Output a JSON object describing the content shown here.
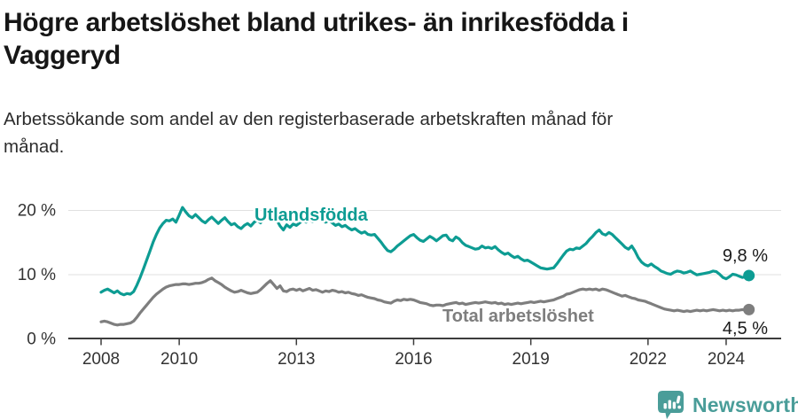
{
  "title": {
    "lines": [
      "Högre arbetslöshet bland utrikes- än inrikesfödda i",
      "Vaggeryd"
    ]
  },
  "subtitle": {
    "lines": [
      "Arbetssökande som andel av den registerbaserade arbetskraften månad för",
      "månad."
    ]
  },
  "footer": {
    "brand": "Newsworthy"
  },
  "colors": {
    "foreign_born_line": "#0d9c93",
    "total_line": "#7e7e7e",
    "axis": "#3c3c3c",
    "grid": "#e1e1e1",
    "value_label": "#1a1a1a",
    "brand_teal": "#4a9d99"
  },
  "chart_data": {
    "type": "line",
    "title": "Högre arbetslöshet bland utrikes- än inrikesfödda i Vaggeryd",
    "subtitle": "Arbetssökande som andel av den registerbaserade arbetskraften månad för månad.",
    "unit": "%",
    "x_start_year": 2008,
    "x_step_months": 1,
    "x_ticks": [
      {
        "year": 2008,
        "label": "2008"
      },
      {
        "year": 2010,
        "label": "2010"
      },
      {
        "year": 2013,
        "label": "2013"
      },
      {
        "year": 2016,
        "label": "2016"
      },
      {
        "year": 2019,
        "label": "2019"
      },
      {
        "year": 2022,
        "label": "2022"
      },
      {
        "year": 2024,
        "label": "2024"
      }
    ],
    "y_ticks": [
      {
        "value": 0,
        "label": "0 %"
      },
      {
        "value": 10,
        "label": "10 %"
      },
      {
        "value": 20,
        "label": "20 %"
      }
    ],
    "y_range": [
      0,
      22
    ],
    "grid": "horizontal-only",
    "legend_position": "inline-labels",
    "series": [
      {
        "id": "utlandsfodda",
        "name": "Utlandsfödda",
        "color": "#0d9c93",
        "end_label": "9,8 %",
        "end_value": 9.8,
        "values": [
          7.2,
          7.5,
          7.7,
          7.4,
          7.1,
          7.4,
          7.0,
          6.8,
          7.0,
          6.9,
          7.3,
          8.3,
          9.5,
          10.8,
          12.2,
          13.6,
          15.0,
          16.2,
          17.2,
          17.9,
          18.4,
          18.3,
          18.6,
          18.1,
          19.2,
          20.4,
          19.7,
          19.1,
          18.8,
          19.3,
          18.8,
          18.3,
          18.0,
          18.5,
          18.9,
          18.4,
          17.9,
          18.4,
          18.8,
          18.2,
          17.7,
          17.9,
          17.4,
          17.1,
          17.6,
          17.9,
          17.5,
          18.1,
          18.4,
          18.0,
          18.8,
          19.6,
          20.1,
          19.2,
          18.4,
          17.5,
          16.9,
          17.7,
          17.3,
          17.8,
          17.6,
          18.0,
          18.4,
          18.1,
          18.5,
          18.2,
          18.6,
          18.7,
          18.3,
          18.1,
          18.4,
          18.0,
          17.6,
          17.8,
          17.4,
          17.6,
          17.2,
          16.9,
          17.1,
          16.7,
          16.4,
          16.6,
          16.2,
          16.1,
          16.2,
          15.6,
          15.0,
          14.3,
          13.7,
          13.5,
          13.9,
          14.4,
          14.8,
          15.2,
          15.6,
          16.0,
          16.2,
          15.7,
          15.3,
          15.1,
          15.5,
          15.9,
          15.6,
          15.2,
          15.6,
          16.0,
          16.1,
          15.4,
          15.2,
          15.8,
          15.5,
          14.9,
          14.5,
          14.3,
          14.1,
          13.9,
          14.0,
          14.4,
          14.1,
          14.2,
          14.0,
          14.3,
          13.8,
          13.4,
          13.1,
          13.3,
          12.9,
          12.6,
          12.8,
          12.4,
          12.1,
          12.2,
          11.9,
          11.6,
          11.3,
          11.0,
          10.9,
          10.8,
          10.9,
          11.0,
          11.6,
          12.3,
          13.0,
          13.6,
          13.9,
          13.8,
          14.1,
          14.0,
          14.4,
          14.8,
          15.4,
          15.9,
          16.5,
          16.9,
          16.3,
          16.1,
          16.5,
          16.2,
          15.7,
          15.2,
          14.7,
          14.2,
          13.9,
          14.4,
          13.6,
          12.6,
          11.9,
          11.5,
          11.3,
          11.6,
          11.2,
          10.9,
          10.5,
          10.3,
          10.1,
          10.0,
          10.3,
          10.5,
          10.4,
          10.2,
          10.3,
          10.5,
          10.2,
          9.9,
          10.0,
          10.1,
          10.2,
          10.3,
          10.5,
          10.4,
          10.0,
          9.5,
          9.3,
          9.6,
          10.0,
          9.9,
          9.7,
          9.5,
          9.6,
          9.8
        ]
      },
      {
        "id": "total",
        "name": "Total arbetslöshet",
        "color": "#7e7e7e",
        "end_label": "4,5 %",
        "end_value": 4.5,
        "values": [
          2.6,
          2.7,
          2.6,
          2.4,
          2.2,
          2.1,
          2.2,
          2.2,
          2.3,
          2.4,
          2.7,
          3.3,
          4.0,
          4.6,
          5.2,
          5.8,
          6.4,
          6.9,
          7.3,
          7.7,
          8.0,
          8.2,
          8.3,
          8.4,
          8.4,
          8.5,
          8.5,
          8.4,
          8.5,
          8.6,
          8.6,
          8.7,
          8.9,
          9.2,
          9.4,
          9.0,
          8.7,
          8.4,
          8.0,
          7.7,
          7.4,
          7.2,
          7.3,
          7.5,
          7.3,
          7.1,
          7.0,
          7.1,
          7.2,
          7.6,
          8.1,
          8.6,
          9.0,
          8.4,
          7.8,
          8.2,
          7.4,
          7.3,
          7.6,
          7.7,
          7.5,
          7.7,
          7.4,
          7.6,
          7.8,
          7.5,
          7.6,
          7.4,
          7.2,
          7.4,
          7.3,
          7.5,
          7.4,
          7.2,
          7.3,
          7.1,
          7.2,
          7.0,
          6.9,
          6.7,
          6.8,
          6.6,
          6.4,
          6.3,
          6.2,
          6.0,
          5.9,
          5.7,
          5.6,
          5.5,
          5.8,
          6.0,
          5.9,
          6.1,
          6.0,
          6.1,
          6.0,
          5.8,
          5.6,
          5.5,
          5.4,
          5.2,
          5.1,
          5.2,
          5.2,
          5.1,
          5.3,
          5.4,
          5.5,
          5.6,
          5.4,
          5.5,
          5.3,
          5.4,
          5.5,
          5.6,
          5.5,
          5.6,
          5.7,
          5.6,
          5.5,
          5.6,
          5.4,
          5.5,
          5.3,
          5.4,
          5.3,
          5.4,
          5.5,
          5.4,
          5.5,
          5.6,
          5.7,
          5.6,
          5.7,
          5.8,
          5.7,
          5.8,
          5.9,
          6.0,
          6.2,
          6.4,
          6.6,
          6.9,
          7.0,
          7.2,
          7.4,
          7.6,
          7.7,
          7.6,
          7.7,
          7.6,
          7.7,
          7.5,
          7.7,
          7.6,
          7.4,
          7.2,
          7.0,
          6.8,
          6.6,
          6.7,
          6.5,
          6.3,
          6.2,
          6.0,
          5.9,
          5.8,
          5.6,
          5.4,
          5.2,
          5.0,
          4.8,
          4.6,
          4.5,
          4.4,
          4.3,
          4.4,
          4.3,
          4.2,
          4.3,
          4.2,
          4.3,
          4.4,
          4.3,
          4.4,
          4.3,
          4.4,
          4.5,
          4.4,
          4.3,
          4.4,
          4.3,
          4.4,
          4.3,
          4.4,
          4.4,
          4.5,
          4.4,
          4.5
        ]
      }
    ]
  }
}
